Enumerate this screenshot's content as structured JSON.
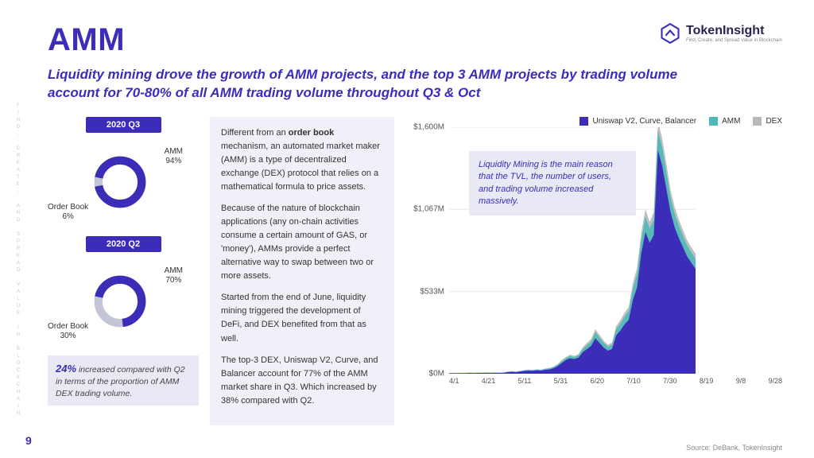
{
  "page_number": "9",
  "side_text": "FIND, CREATE, AND SPREAD VALUE IN BLOCKCHAIN.",
  "logo": {
    "name": "TokenInsight",
    "tagline": "Find, Create, and Spread Value in Blockchain",
    "mark_color_primary": "#3b2db8",
    "mark_color_secondary": "#8b86d9"
  },
  "title": "AMM",
  "subtitle": "Liquidity mining drove the growth of AMM projects, and the top 3 AMM projects by trading volume account for 70-80% of all AMM trading volume throughout Q3 & Oct",
  "donuts": {
    "q3": {
      "period": "2020 Q3",
      "amm_label": "AMM",
      "amm_pct": "94%",
      "amm_value": 94,
      "ob_label": "Order Book",
      "ob_pct": "6%",
      "ob_value": 6,
      "amm_color": "#3b2db8",
      "ob_color": "#c5c5d8"
    },
    "q2": {
      "period": "2020 Q2",
      "amm_label": "AMM",
      "amm_pct": "70%",
      "amm_value": 70,
      "ob_label": "Order Book",
      "ob_pct": "30%",
      "ob_value": 30,
      "amm_color": "#3b2db8",
      "ob_color": "#c5c5d8"
    }
  },
  "left_callout": {
    "pct": "24%",
    "text": " increased compared with Q2 in terms of the proportion of AMM DEX trading volume."
  },
  "mid_paragraphs": {
    "p1_pre": "Different from an ",
    "p1_bold": "order book",
    "p1_post": " mechanism, an automated market maker (AMM) is a type of decentralized exchange (DEX) protocol that relies on a mathematical formula to price assets.",
    "p2": "Because of the nature of blockchain applications (any on-chain activities consume a certain amount of GAS, or 'money'), AMMs provide a perfect alternative way to swap between two or more assets.",
    "p3": "Started from the end of June, liquidity mining triggered the development of DeFi, and DEX benefited from that as well.",
    "p4": "The top-3 DEX, Uniswap V2, Curve, and Balancer account for 77% of the AMM market share in Q3. Which increased by 38% compared with Q2."
  },
  "chart": {
    "type": "area",
    "legend": [
      {
        "label": "Uniswap V2, Curve, Balancer",
        "color": "#3b2db8"
      },
      {
        "label": "AMM",
        "color": "#4db8b8"
      },
      {
        "label": "DEX",
        "color": "#b8b8b8"
      }
    ],
    "y_ticks": [
      {
        "label": "$1,600M",
        "pos": 0
      },
      {
        "label": "$1,067M",
        "pos": 33.3
      },
      {
        "label": "$533M",
        "pos": 66.7
      },
      {
        "label": "$0M",
        "pos": 100
      }
    ],
    "x_ticks": [
      "4/1",
      "4/21",
      "5/11",
      "5/31",
      "6/20",
      "7/10",
      "7/30",
      "8/19",
      "9/8",
      "9/28"
    ],
    "ylim": [
      0,
      1600
    ],
    "background_color": "#ffffff",
    "grid_color": "#e8e8e8",
    "callout": "Liquidity Mining is the main reason that the TVL, the number of users, and trading volume increased massively.",
    "series_top3": [
      3,
      3,
      3,
      4,
      4,
      5,
      4,
      5,
      5,
      6,
      5,
      6,
      5,
      6,
      10,
      12,
      10,
      14,
      18,
      20,
      18,
      22,
      20,
      25,
      28,
      35,
      50,
      70,
      90,
      100,
      95,
      105,
      140,
      160,
      180,
      230,
      200,
      170,
      150,
      160,
      250,
      280,
      320,
      350,
      480,
      560,
      780,
      920,
      850,
      900,
      1450,
      1350,
      1200,
      1050,
      950,
      880,
      820,
      760,
      720,
      680
    ],
    "series_amm": [
      4,
      4,
      4,
      5,
      5,
      6,
      5,
      6,
      6,
      7,
      6,
      7,
      6,
      7,
      12,
      14,
      12,
      16,
      21,
      24,
      22,
      26,
      24,
      30,
      34,
      42,
      58,
      82,
      102,
      115,
      108,
      120,
      160,
      185,
      208,
      270,
      235,
      200,
      175,
      188,
      290,
      325,
      370,
      405,
      555,
      645,
      870,
      1020,
      940,
      1000,
      1580,
      1470,
      1310,
      1145,
      1038,
      960,
      895,
      830,
      788,
      745
    ],
    "series_dex": [
      5,
      5,
      5,
      6,
      6,
      7,
      6,
      7,
      7,
      8,
      7,
      8,
      7,
      8,
      14,
      16,
      14,
      18,
      24,
      27,
      25,
      29,
      27,
      34,
      38,
      47,
      63,
      90,
      110,
      124,
      116,
      128,
      172,
      200,
      225,
      290,
      252,
      215,
      188,
      202,
      310,
      348,
      396,
      432,
      590,
      688,
      915,
      1070,
      985,
      1050,
      1640,
      1530,
      1365,
      1195,
      1082,
      1000,
      932,
      865,
      820,
      778
    ]
  },
  "source": "Source: DeBank, TokenInsight",
  "colors": {
    "primary": "#3b2db8",
    "bg_light": "#e8e9f5",
    "bg_mid": "#f0f1f8"
  }
}
